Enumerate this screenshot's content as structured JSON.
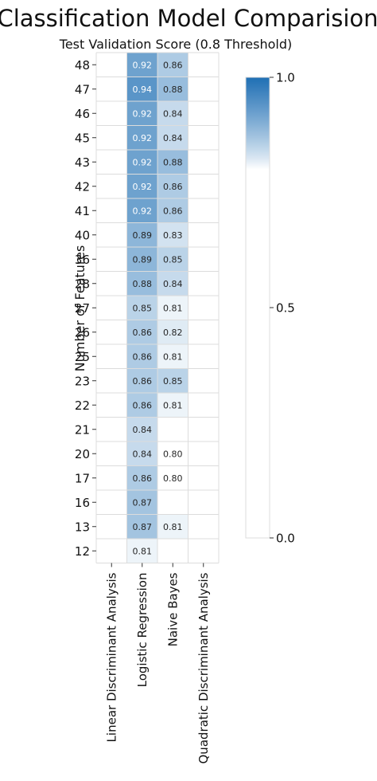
{
  "chart_data": {
    "type": "heatmap",
    "title": "Classification Model Comparision",
    "subtitle": "Test Validation Score (0.8 Threshold)",
    "ylabel": "Number of Features",
    "xlabel": "",
    "x_categories": [
      "Linear Discriminant Analysis",
      "Logistic Regression",
      "Naive Bayes",
      "Quadratic Discriminant Analysis"
    ],
    "y_categories": [
      "48",
      "47",
      "46",
      "45",
      "43",
      "42",
      "41",
      "40",
      "36",
      "28",
      "27",
      "26",
      "25",
      "23",
      "22",
      "21",
      "20",
      "17",
      "16",
      "13",
      "12"
    ],
    "values": [
      [
        null,
        0.92,
        0.86,
        null
      ],
      [
        null,
        0.94,
        0.88,
        null
      ],
      [
        null,
        0.92,
        0.84,
        null
      ],
      [
        null,
        0.92,
        0.84,
        null
      ],
      [
        null,
        0.92,
        0.88,
        null
      ],
      [
        null,
        0.92,
        0.86,
        null
      ],
      [
        null,
        0.92,
        0.86,
        null
      ],
      [
        null,
        0.89,
        0.83,
        null
      ],
      [
        null,
        0.89,
        0.85,
        null
      ],
      [
        null,
        0.88,
        0.84,
        null
      ],
      [
        null,
        0.85,
        0.81,
        null
      ],
      [
        null,
        0.86,
        0.82,
        null
      ],
      [
        null,
        0.86,
        0.81,
        null
      ],
      [
        null,
        0.86,
        0.85,
        null
      ],
      [
        null,
        0.86,
        0.81,
        null
      ],
      [
        null,
        0.84,
        null,
        null
      ],
      [
        null,
        0.84,
        0.8,
        null
      ],
      [
        null,
        0.86,
        0.8,
        null
      ],
      [
        null,
        0.87,
        null,
        null
      ],
      [
        null,
        0.87,
        0.81,
        null
      ],
      [
        null,
        0.81,
        null,
        null
      ]
    ],
    "colorbar": {
      "min": 0.0,
      "max": 1.0,
      "ticks": [
        "0.0",
        "0.5",
        "1.0"
      ]
    },
    "colormap": {
      "low": "#ffffff",
      "high": "#1f6fb4"
    },
    "threshold": 0.8,
    "grid": true
  }
}
